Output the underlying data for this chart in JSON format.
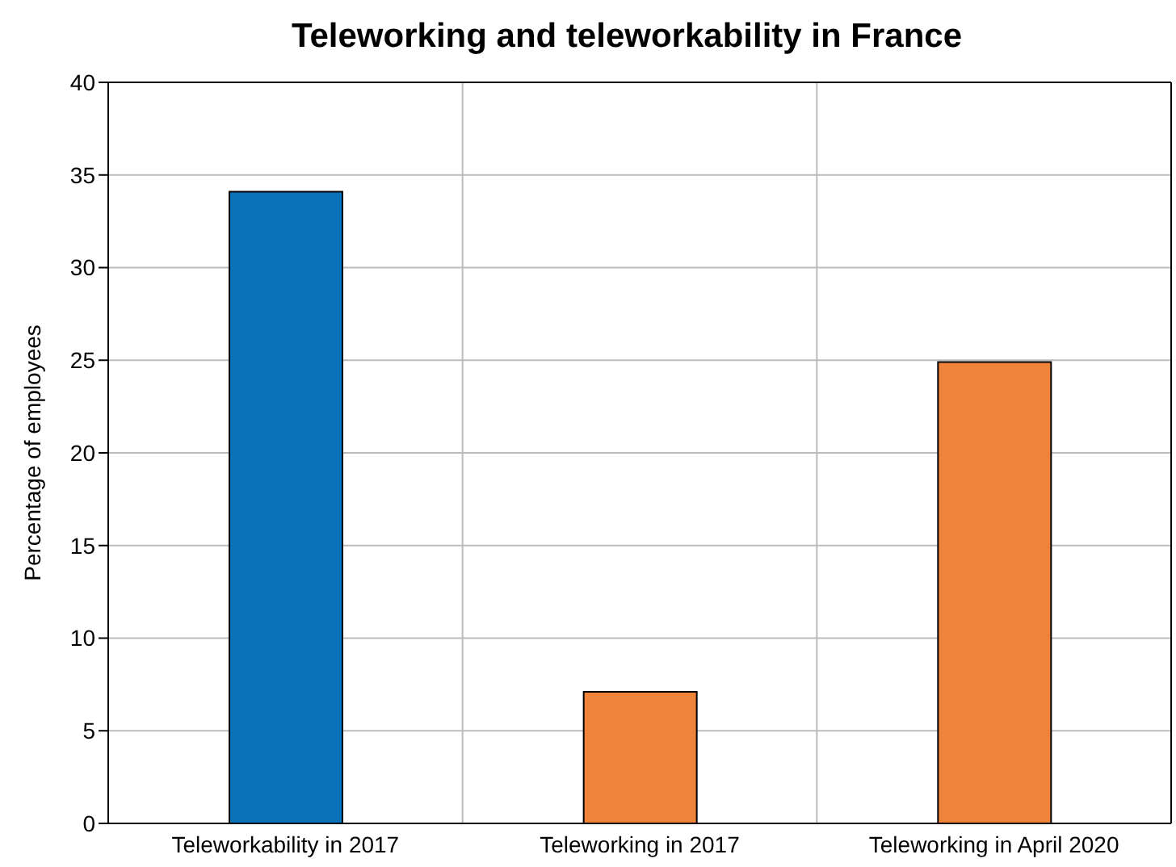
{
  "chart_data": {
    "type": "bar",
    "title": "Teleworking and teleworkability in France",
    "ylabel": "Percentage of employees",
    "categories": [
      "Teleworkability in 2017",
      "Teleworking in 2017",
      "Teleworking in April 2020"
    ],
    "values": [
      34.1,
      7.1,
      24.9
    ],
    "colors": [
      "#0a70b8",
      "#f0833a",
      "#f0833a"
    ],
    "ylim": [
      0,
      40
    ],
    "yticks": [
      0,
      5,
      10,
      15,
      20,
      25,
      30,
      35,
      40
    ],
    "grid": true
  }
}
